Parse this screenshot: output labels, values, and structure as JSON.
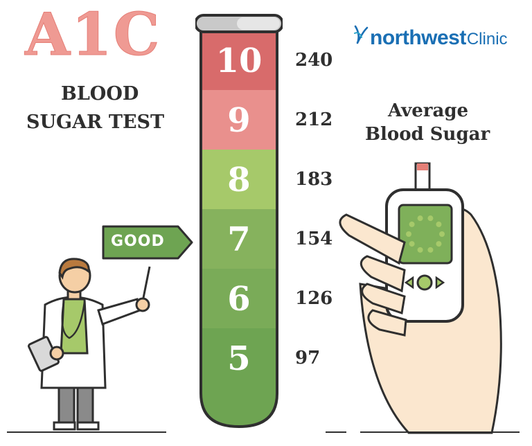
{
  "title": {
    "main": "A1C",
    "line1": "BLOOD",
    "line2": "SUGAR TEST"
  },
  "logo": {
    "brand": "northwest",
    "suffix": "Clinic"
  },
  "right_heading": {
    "line1": "Average",
    "line2": "Blood Sugar"
  },
  "indicator": {
    "label": "GOOD"
  },
  "chart_data": {
    "type": "table",
    "rows": [
      {
        "a1c": "10",
        "avg": "240",
        "color": "#d86b6b"
      },
      {
        "a1c": "9",
        "avg": "212",
        "color": "#e9908d"
      },
      {
        "a1c": "8",
        "avg": "183",
        "color": "#a6c96a"
      },
      {
        "a1c": "7",
        "avg": "154",
        "color": "#86b25d"
      },
      {
        "a1c": "6",
        "avg": "126",
        "color": "#7aab58"
      },
      {
        "a1c": "5",
        "avg": "97",
        "color": "#6ea452"
      }
    ]
  },
  "colors": {
    "accent_red": "#ef9a93",
    "good_green": "#6ea452",
    "text_dark": "#2f2f2f",
    "brand_blue": "#1a6fb4"
  }
}
